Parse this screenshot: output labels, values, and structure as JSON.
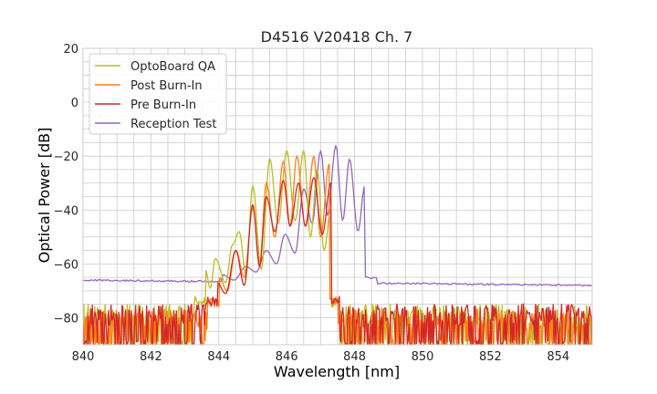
{
  "chart_data": {
    "type": "line",
    "title": "D4516 V20418 Ch. 7",
    "xlabel": "Wavelength [nm]",
    "ylabel": "Optical Power [dB]",
    "xlim": [
      840,
      855
    ],
    "ylim": [
      -90,
      20
    ],
    "xticks": [
      840,
      842,
      844,
      846,
      848,
      850,
      852,
      854
    ],
    "yticks": [
      -80,
      -60,
      -40,
      -20,
      0,
      20
    ],
    "x_minor_step": 0.5,
    "y_minor_step": 5,
    "grid": true,
    "legend_position": "upper-left",
    "colors": {
      "optoboard": "#bcbd22",
      "postburn": "#ff7f0e",
      "preburn": "#d62728",
      "reception": "#9467bd",
      "grid": "#cccccc",
      "frame": "#cccccc"
    },
    "series": [
      {
        "name": "OptoBoard QA",
        "color": "#bcbd22",
        "noise_floor": -80,
        "peaks": [
          {
            "x": 843.6,
            "y": -62
          },
          {
            "x": 843.9,
            "y": -58
          },
          {
            "x": 844.4,
            "y": -53
          },
          {
            "x": 844.6,
            "y": -48
          },
          {
            "x": 845.0,
            "y": -31
          },
          {
            "x": 845.5,
            "y": -21
          },
          {
            "x": 846.0,
            "y": -18
          },
          {
            "x": 846.5,
            "y": -18
          },
          {
            "x": 846.9,
            "y": -25
          },
          {
            "x": 847.3,
            "y": -40
          }
        ],
        "valleys": [
          {
            "x": 843.75,
            "y": -69
          },
          {
            "x": 844.2,
            "y": -67
          },
          {
            "x": 844.8,
            "y": -64
          },
          {
            "x": 845.25,
            "y": -62
          },
          {
            "x": 845.75,
            "y": -45
          },
          {
            "x": 846.25,
            "y": -44
          },
          {
            "x": 846.7,
            "y": -50
          },
          {
            "x": 847.1,
            "y": -55
          }
        ]
      },
      {
        "name": "Post Burn-In",
        "color": "#ff7f0e",
        "noise_floor": -82,
        "peaks": [
          {
            "x": 844.0,
            "y": -65
          },
          {
            "x": 844.5,
            "y": -55
          },
          {
            "x": 845.0,
            "y": -39
          },
          {
            "x": 845.4,
            "y": -30
          },
          {
            "x": 845.9,
            "y": -22
          },
          {
            "x": 846.3,
            "y": -20
          },
          {
            "x": 846.8,
            "y": -20
          },
          {
            "x": 847.25,
            "y": -23
          }
        ],
        "valleys": [
          {
            "x": 844.25,
            "y": -70
          },
          {
            "x": 844.75,
            "y": -65
          },
          {
            "x": 845.2,
            "y": -60
          },
          {
            "x": 845.65,
            "y": -50
          },
          {
            "x": 846.1,
            "y": -46
          },
          {
            "x": 846.55,
            "y": -46
          },
          {
            "x": 847.0,
            "y": -50
          }
        ]
      },
      {
        "name": "Pre Burn-In",
        "color": "#d62728",
        "noise_floor": -80,
        "peaks": [
          {
            "x": 843.95,
            "y": -67
          },
          {
            "x": 844.5,
            "y": -55
          },
          {
            "x": 845.0,
            "y": -38
          },
          {
            "x": 845.4,
            "y": -35
          },
          {
            "x": 845.9,
            "y": -29
          },
          {
            "x": 846.35,
            "y": -30
          },
          {
            "x": 846.8,
            "y": -28
          },
          {
            "x": 847.3,
            "y": -30
          }
        ],
        "valleys": [
          {
            "x": 844.2,
            "y": -71
          },
          {
            "x": 844.75,
            "y": -68
          },
          {
            "x": 845.2,
            "y": -61
          },
          {
            "x": 845.65,
            "y": -48
          },
          {
            "x": 846.1,
            "y": -46
          },
          {
            "x": 846.55,
            "y": -46
          },
          {
            "x": 847.05,
            "y": -49
          }
        ]
      },
      {
        "name": "Reception Test",
        "color": "#9467bd",
        "baseline_start": -66,
        "baseline_end": -68,
        "peaks": [
          {
            "x": 844.1,
            "y": -64
          },
          {
            "x": 844.8,
            "y": -61
          },
          {
            "x": 845.4,
            "y": -55
          },
          {
            "x": 845.95,
            "y": -49
          },
          {
            "x": 846.5,
            "y": -32
          },
          {
            "x": 847.0,
            "y": -18
          },
          {
            "x": 847.45,
            "y": -16
          },
          {
            "x": 847.85,
            "y": -21
          },
          {
            "x": 848.3,
            "y": -31
          }
        ],
        "valleys": [
          {
            "x": 844.45,
            "y": -66
          },
          {
            "x": 845.1,
            "y": -63
          },
          {
            "x": 845.7,
            "y": -60
          },
          {
            "x": 846.25,
            "y": -56
          },
          {
            "x": 846.75,
            "y": -45
          },
          {
            "x": 847.2,
            "y": -42
          },
          {
            "x": 847.65,
            "y": -44
          },
          {
            "x": 848.1,
            "y": -48
          }
        ]
      }
    ]
  }
}
